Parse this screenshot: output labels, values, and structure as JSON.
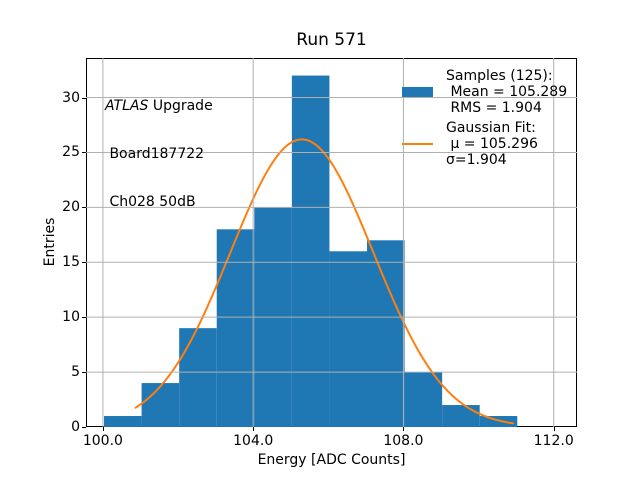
{
  "figure": {
    "title": "Run 571",
    "xlabel": "Energy [ADC Counts]",
    "ylabel": "Entries",
    "background": "#ffffff"
  },
  "annotation": {
    "line1_italic": "ATLAS",
    "line1_rest": " Upgrade",
    "line2": " Board187722",
    "line3": " Ch028 50dB"
  },
  "legend": {
    "swatch_color": "#1f77b4",
    "line_color": "#ff7f0e",
    "rows": [
      {
        "handle": "none",
        "text": "Samples (125):"
      },
      {
        "handle": "swatch",
        "text": " Mean = 105.289"
      },
      {
        "handle": "none",
        "text": " RMS = 1.904"
      },
      {
        "handle": "none",
        "text": "Gaussian Fit:",
        "gap": true
      },
      {
        "handle": "line",
        "text": " μ = 105.296"
      },
      {
        "handle": "none",
        "text": "σ=1.904"
      }
    ]
  },
  "chart_data": {
    "type": "bar",
    "title": "Run 571",
    "xlabel": "Energy [ADC Counts]",
    "ylabel": "Entries",
    "bin_start": 100.03,
    "bin_width": 1.0,
    "values": [
      1,
      4,
      9,
      18,
      20,
      32,
      16,
      17,
      5,
      2,
      1
    ],
    "n_samples": 125,
    "mean": 105.289,
    "rms": 1.904,
    "fit": {
      "type": "gaussian",
      "mu": 105.296,
      "sigma": 1.904,
      "amplitude": 26.19,
      "x_start": 100.87,
      "x_end": 110.93
    },
    "xlim": [
      99.55,
      112.62
    ],
    "ylim": [
      0,
      33.6
    ],
    "xticks": [
      100.0,
      104.0,
      108.0,
      112.0
    ],
    "xtick_labels": [
      "100.0",
      "104.0",
      "108.0",
      "112.0"
    ],
    "yticks": [
      0,
      5,
      10,
      15,
      20,
      25,
      30
    ],
    "grid": true,
    "legend_position": "upper right",
    "bar_color": "#1f77b4",
    "curve_color": "#ff7f0e",
    "grid_color": "#b0b0b0",
    "axis_color": "#000000"
  }
}
